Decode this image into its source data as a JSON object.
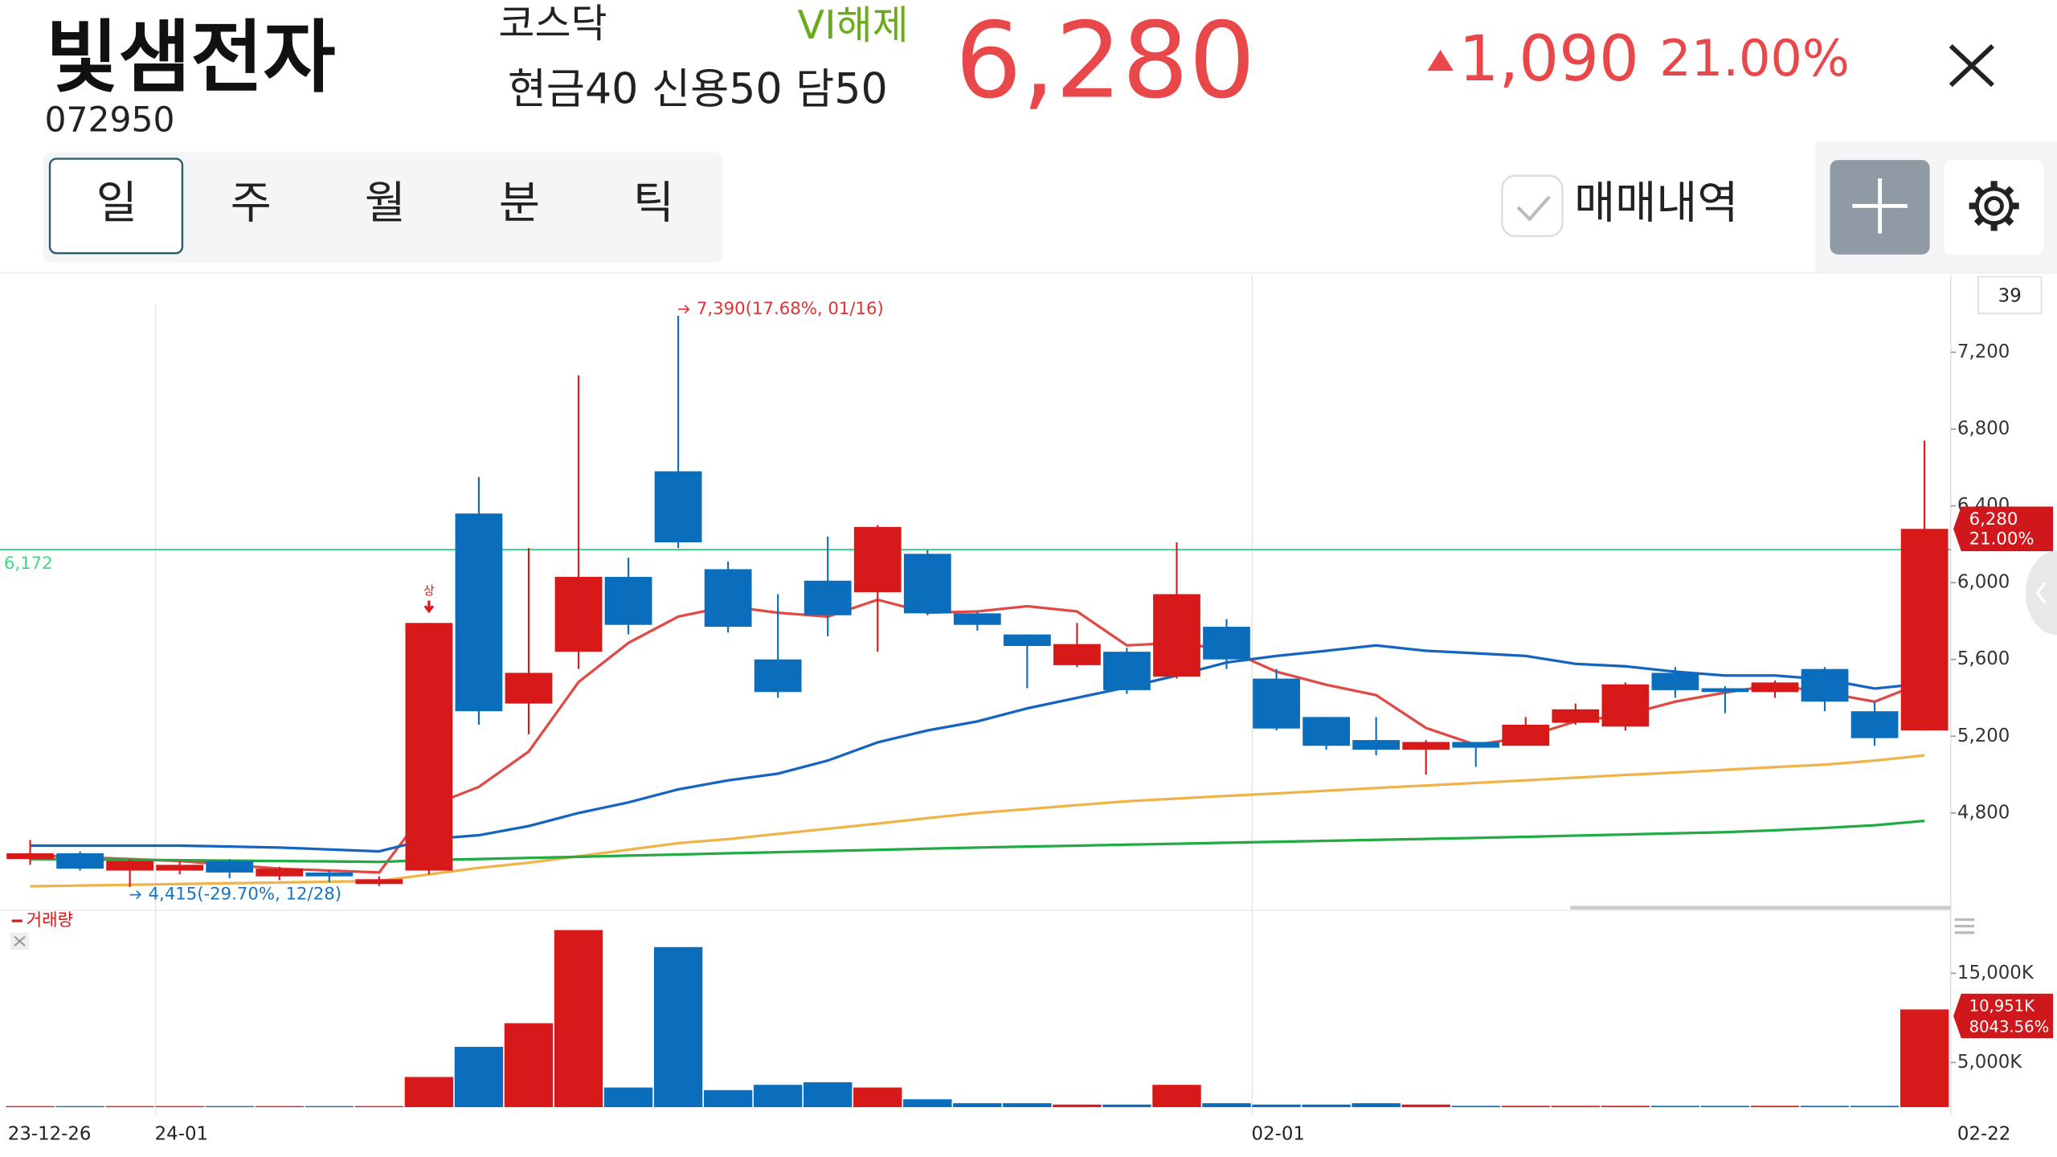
{
  "header": {
    "name": "빛샘전자",
    "code": "072950",
    "market": "코스닥",
    "vi_status": "VI해제",
    "margin_info": "현금40 신용50 담50",
    "price": "6,280",
    "change": "1,090",
    "change_rate": "21.00%"
  },
  "tabs": [
    "일",
    "주",
    "월",
    "분",
    "틱"
  ],
  "trade_history_label": "매매내역",
  "chart_data": [
    {
      "type": "candlestick",
      "count_label": "39",
      "categories": [
        "23-12-26",
        null,
        null,
        "24-01",
        null,
        null,
        null,
        null,
        null,
        null,
        null,
        null,
        null,
        null,
        null,
        null,
        null,
        null,
        null,
        null,
        null,
        null,
        null,
        null,
        null,
        "02-01",
        null,
        null,
        null,
        null,
        null,
        null,
        null,
        null,
        null,
        null,
        null,
        null,
        "02-22"
      ],
      "open": [
        4560,
        4590,
        4500,
        4500,
        4550,
        4470,
        4490,
        4430,
        4500,
        6360,
        5370,
        5640,
        6030,
        6580,
        6070,
        5600,
        6010,
        5950,
        6150,
        5840,
        5730,
        5570,
        5640,
        5510,
        5770,
        5500,
        5300,
        5180,
        5130,
        5170,
        5150,
        5270,
        5250,
        5530,
        5450,
        5430,
        5550,
        5330,
        5230
      ],
      "high": [
        4660,
        4600,
        4560,
        4550,
        4560,
        4520,
        4500,
        4470,
        5790,
        6550,
        6180,
        7080,
        6130,
        7390,
        6110,
        5940,
        6240,
        6300,
        6170,
        5850,
        5730,
        5790,
        5660,
        6210,
        5810,
        5550,
        5300,
        5300,
        5180,
        5170,
        5300,
        5370,
        5480,
        5560,
        5460,
        5490,
        5560,
        5380,
        6740
      ],
      "low": [
        4530,
        4500,
        4415,
        4480,
        4460,
        4450,
        4440,
        4420,
        4480,
        5260,
        5210,
        5550,
        5730,
        6180,
        5740,
        5400,
        5720,
        5640,
        5830,
        5750,
        5450,
        5560,
        5420,
        5500,
        5550,
        5230,
        5130,
        5100,
        5000,
        5040,
        5150,
        5260,
        5230,
        5400,
        5320,
        5400,
        5330,
        5150,
        5230
      ],
      "close": [
        4590,
        4510,
        4550,
        4530,
        4490,
        4510,
        4470,
        4455,
        5790,
        5330,
        5530,
        6030,
        5780,
        6210,
        5770,
        5430,
        5830,
        6290,
        5840,
        5780,
        5670,
        5680,
        5440,
        5940,
        5600,
        5240,
        5150,
        5130,
        5170,
        5140,
        5260,
        5340,
        5470,
        5440,
        5430,
        5480,
        5380,
        5190,
        6280
      ],
      "up_color": "#d7191a",
      "down_color": "#0a6ebd",
      "ma_lines": [
        {
          "color": "#e04a45",
          "values": [
            4580,
            4570,
            4560,
            4550,
            4530,
            4510,
            4500,
            4490,
            4834,
            4936,
            5120,
            5482,
            5686,
            5823,
            5877,
            5843,
            5823,
            5911,
            5843,
            5850,
            5877,
            5850,
            5673,
            5686,
            5652,
            5536,
            5468,
            5414,
            5243,
            5155,
            5195,
            5277,
            5311,
            5380,
            5427,
            5468,
            5427,
            5380,
            5482
          ]
        },
        {
          "color": "#1565c0",
          "values": [
            4630,
            4630,
            4630,
            4630,
            4625,
            4620,
            4610,
            4600,
            4664,
            4684,
            4732,
            4800,
            4855,
            4923,
            4970,
            5005,
            5073,
            5168,
            5230,
            5277,
            5345,
            5400,
            5455,
            5516,
            5584,
            5618,
            5645,
            5673,
            5645,
            5632,
            5618,
            5577,
            5564,
            5536,
            5516,
            5516,
            5496,
            5448,
            5475
          ]
        },
        {
          "color": "#f0b34a",
          "values": [
            4418,
            4422,
            4426,
            4430,
            4434,
            4438,
            4442,
            4446,
            4480,
            4514,
            4541,
            4575,
            4609,
            4643,
            4664,
            4691,
            4718,
            4745,
            4773,
            4800,
            4820,
            4841,
            4861,
            4875,
            4889,
            4902,
            4916,
            4930,
            4943,
            4957,
            4970,
            4984,
            4998,
            5011,
            5025,
            5039,
            5052,
            5073,
            5100
          ]
        },
        {
          "color": "#22aa44",
          "values": [
            4560,
            4558,
            4556,
            4554,
            4552,
            4550,
            4548,
            4545,
            4555,
            4560,
            4566,
            4572,
            4578,
            4584,
            4590,
            4596,
            4602,
            4608,
            4614,
            4620,
            4625,
            4630,
            4635,
            4640,
            4645,
            4650,
            4655,
            4660,
            4665,
            4670,
            4676,
            4682,
            4688,
            4694,
            4700,
            4710,
            4722,
            4736,
            4759
          ]
        }
      ],
      "ylim": [
        4320,
        7600
      ],
      "yticks": [
        {
          "value": 4800,
          "label": "4,800"
        },
        {
          "value": 5200,
          "label": "5,200"
        },
        {
          "value": 5600,
          "label": "5,600"
        },
        {
          "value": 6000,
          "label": "6,000"
        },
        {
          "value": 6400,
          "label": "6,400"
        },
        {
          "value": 6800,
          "label": "6,800"
        },
        {
          "value": 7200,
          "label": "7,200"
        }
      ],
      "reference_line": {
        "value": 6172,
        "label": "6,172",
        "color": "#3ddc84"
      },
      "max_annotation": "7,390(17.68%, 01/16)",
      "min_annotation": "4,415(-29.70%, 12/28)",
      "limit_up_marker": "상",
      "last_price_label": "6,280",
      "last_change_label": "21.00%"
    },
    {
      "type": "bar",
      "title": "거래량",
      "values": [
        120,
        120,
        120,
        120,
        120,
        120,
        120,
        120,
        3380,
        6760,
        9410,
        19850,
        2200,
        17940,
        1910,
        2500,
        2790,
        2200,
        880,
        440,
        440,
        290,
        290,
        2500,
        440,
        290,
        290,
        440,
        290,
        150,
        150,
        150,
        150,
        150,
        150,
        150,
        150,
        150,
        10951
      ],
      "ylim": [
        0,
        21760
      ],
      "yticks": [
        {
          "value": 5000,
          "label": "5,000K"
        },
        {
          "value": 15000,
          "label": "15,000K"
        }
      ],
      "last_volume_label": "10,951K",
      "last_volume_change": "8043.56%"
    }
  ]
}
